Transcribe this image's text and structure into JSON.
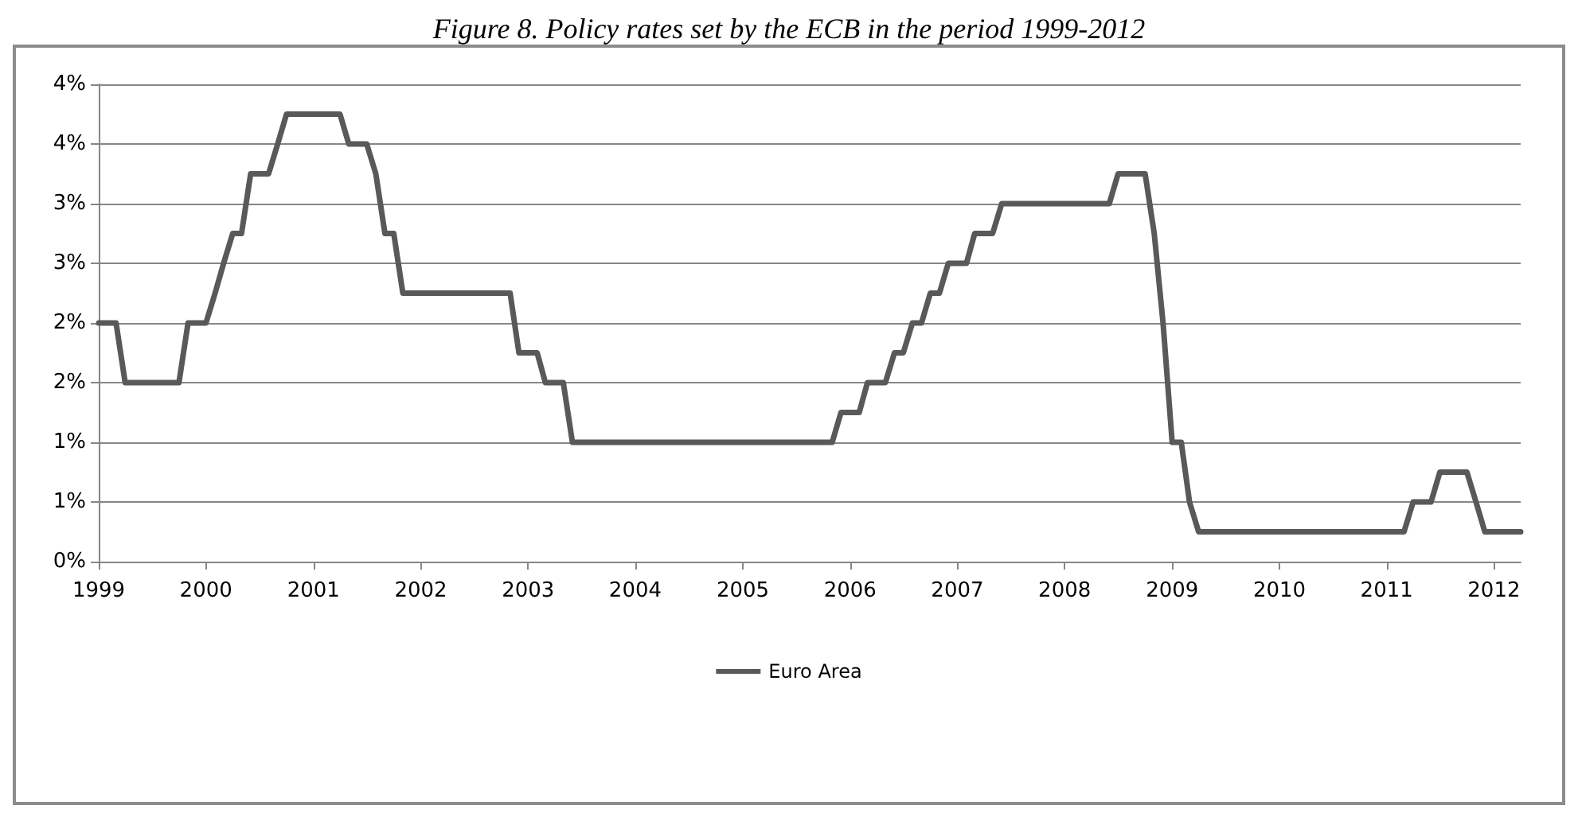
{
  "chart_data": {
    "type": "line",
    "title": "Figure 8. Policy rates set by the ECB in the period 1999-2012",
    "x": [
      "1999-01",
      "1999-03",
      "1999-04",
      "1999-10",
      "1999-11",
      "2000-01",
      "2000-02",
      "2000-03",
      "2000-04",
      "2000-05",
      "2000-06",
      "2000-08",
      "2000-09",
      "2000-10",
      "2001-04",
      "2001-05",
      "2001-07",
      "2001-08",
      "2001-09",
      "2001-10",
      "2001-11",
      "2002-11",
      "2002-12",
      "2003-02",
      "2003-03",
      "2003-05",
      "2003-06",
      "2005-11",
      "2005-12",
      "2006-02",
      "2006-03",
      "2006-05",
      "2006-06",
      "2006-07",
      "2006-08",
      "2006-09",
      "2006-10",
      "2006-11",
      "2006-12",
      "2007-02",
      "2007-03",
      "2007-05",
      "2007-06",
      "2008-06",
      "2008-07",
      "2008-10",
      "2008-11",
      "2008-12",
      "2009-01",
      "2009-02",
      "2009-03",
      "2009-04",
      "2011-03",
      "2011-04",
      "2011-06",
      "2011-07",
      "2011-10",
      "2011-11",
      "2011-12",
      "2012-04"
    ],
    "series": [
      {
        "name": "Euro Area",
        "color": "#595959",
        "values": [
          2.0,
          2.0,
          1.5,
          1.5,
          2.0,
          2.0,
          2.25,
          2.5,
          2.75,
          2.75,
          3.25,
          3.25,
          3.5,
          3.75,
          3.75,
          3.5,
          3.5,
          3.25,
          2.75,
          2.75,
          2.25,
          2.25,
          1.75,
          1.75,
          1.5,
          1.5,
          1.0,
          1.0,
          1.25,
          1.25,
          1.5,
          1.5,
          1.75,
          1.75,
          2.0,
          2.0,
          2.25,
          2.25,
          2.5,
          2.5,
          2.75,
          2.75,
          3.0,
          3.0,
          3.25,
          3.25,
          2.75,
          2.0,
          1.0,
          1.0,
          0.5,
          0.25,
          0.25,
          0.5,
          0.5,
          0.75,
          0.75,
          0.5,
          0.25,
          0.25
        ]
      }
    ],
    "xlim": [
      "1999-01",
      "2012-04"
    ],
    "xticks": [
      "1999",
      "2000",
      "2001",
      "2002",
      "2003",
      "2004",
      "2005",
      "2006",
      "2007",
      "2008",
      "2009",
      "2010",
      "2011",
      "2012"
    ],
    "ylim": [
      0,
      4.0
    ],
    "yticks": [
      {
        "value": 0,
        "label": "0%"
      },
      {
        "value": 0.5,
        "label": "1%"
      },
      {
        "value": 1.0,
        "label": "1%"
      },
      {
        "value": 1.5,
        "label": "2%"
      },
      {
        "value": 2.0,
        "label": "2%"
      },
      {
        "value": 2.5,
        "label": "3%"
      },
      {
        "value": 3.0,
        "label": "3%"
      },
      {
        "value": 3.5,
        "label": "4%"
      },
      {
        "value": 4.0,
        "label": "4%"
      }
    ],
    "grid": "y",
    "legend": "bottom",
    "marker": "none",
    "line_style": "solid"
  }
}
